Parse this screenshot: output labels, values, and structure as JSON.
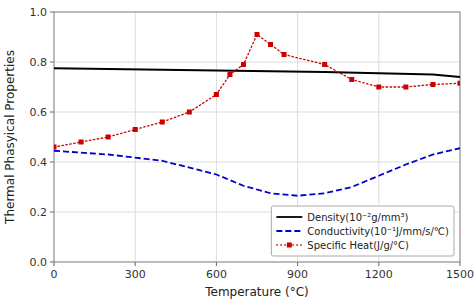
{
  "chart_data": {
    "type": "line",
    "xlabel": "Temperature (°C)",
    "ylabel": "Thermal Phasyical Properties",
    "series": [
      {
        "name": "Density(10⁻²g/mm³)",
        "color": "#000000",
        "line_style": "solid",
        "x": [
          0,
          200,
          400,
          600,
          800,
          1000,
          1200,
          1400,
          1500
        ],
        "values": [
          0.775,
          0.772,
          0.769,
          0.766,
          0.763,
          0.76,
          0.755,
          0.75,
          0.74
        ]
      },
      {
        "name": "Conductivity(10⁻¹J/mm/s/℃)",
        "color": "#0000cc",
        "line_style": "dashed",
        "x": [
          0,
          200,
          400,
          600,
          700,
          800,
          900,
          1000,
          1100,
          1200,
          1300,
          1400,
          1500
        ],
        "values": [
          0.445,
          0.43,
          0.405,
          0.35,
          0.305,
          0.275,
          0.265,
          0.275,
          0.3,
          0.345,
          0.39,
          0.43,
          0.455
        ]
      },
      {
        "name": "Specific Heat(J/g/°C)",
        "color": "#cc0000",
        "line_style": "dotted",
        "marker": "square",
        "x": [
          0,
          100,
          200,
          300,
          400,
          500,
          600,
          650,
          700,
          750,
          800,
          850,
          1000,
          1100,
          1200,
          1300,
          1400,
          1500
        ],
        "values": [
          0.46,
          0.48,
          0.5,
          0.53,
          0.56,
          0.6,
          0.67,
          0.75,
          0.79,
          0.91,
          0.87,
          0.83,
          0.79,
          0.73,
          0.7,
          0.7,
          0.71,
          0.715
        ]
      }
    ],
    "xlim": [
      0,
      1500
    ],
    "ylim": [
      0.0,
      1.0
    ],
    "xticks": [
      0,
      300,
      600,
      900,
      1200,
      1500
    ],
    "yticks": [
      {
        "value": 0.0,
        "label": "0.0"
      },
      0.2,
      0.4,
      0.6,
      0.8,
      {
        "value": 1.0,
        "label": "1.0"
      }
    ],
    "grid": true,
    "legend": "lower right"
  }
}
